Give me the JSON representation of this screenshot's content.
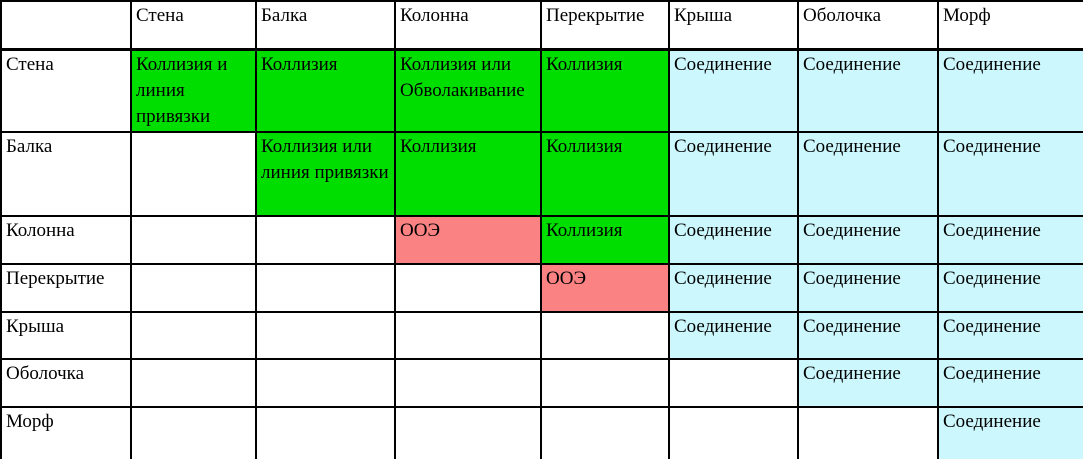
{
  "palette": {
    "green": "#00DE00",
    "red": "#FA8282",
    "cyan": "#CCF7FC",
    "white": "#FFFFFF",
    "border": "#000000",
    "text": "#000000"
  },
  "table": {
    "columns": [
      "",
      "Стена",
      "Балка",
      "Колонна",
      "Перекрытие",
      "Крыша",
      "Оболочка",
      "Морф"
    ],
    "rows": [
      {
        "label": "Стена",
        "cells": [
          {
            "text": "Коллизия и линия привязки",
            "bg": "green"
          },
          {
            "text": "Коллизия",
            "bg": "green"
          },
          {
            "text": "Коллизия или Обволакивание",
            "bg": "green"
          },
          {
            "text": "Коллизия",
            "bg": "green"
          },
          {
            "text": "Соединение",
            "bg": "cyan"
          },
          {
            "text": "Соединение",
            "bg": "cyan"
          },
          {
            "text": "Соединение",
            "bg": "cyan"
          }
        ]
      },
      {
        "label": "Балка",
        "cells": [
          {
            "text": "",
            "bg": "white"
          },
          {
            "text": "Коллизия или линия привязки",
            "bg": "green"
          },
          {
            "text": "Коллизия",
            "bg": "green"
          },
          {
            "text": "Коллизия",
            "bg": "green"
          },
          {
            "text": "Соединение",
            "bg": "cyan"
          },
          {
            "text": "Соединение",
            "bg": "cyan"
          },
          {
            "text": "Соединение",
            "bg": "cyan"
          }
        ]
      },
      {
        "label": "Колонна",
        "cells": [
          {
            "text": "",
            "bg": "white"
          },
          {
            "text": "",
            "bg": "white"
          },
          {
            "text": "ООЭ",
            "bg": "red"
          },
          {
            "text": "Коллизия",
            "bg": "green"
          },
          {
            "text": "Соединение",
            "bg": "cyan"
          },
          {
            "text": "Соединение",
            "bg": "cyan"
          },
          {
            "text": "Соединение",
            "bg": "cyan"
          }
        ]
      },
      {
        "label": "Перекрытие",
        "cells": [
          {
            "text": "",
            "bg": "white"
          },
          {
            "text": "",
            "bg": "white"
          },
          {
            "text": "",
            "bg": "white"
          },
          {
            "text": "ООЭ",
            "bg": "red"
          },
          {
            "text": "Соединение",
            "bg": "cyan"
          },
          {
            "text": "Соединение",
            "bg": "cyan"
          },
          {
            "text": "Соединение",
            "bg": "cyan"
          }
        ]
      },
      {
        "label": "Крыша",
        "cells": [
          {
            "text": "",
            "bg": "white"
          },
          {
            "text": "",
            "bg": "white"
          },
          {
            "text": "",
            "bg": "white"
          },
          {
            "text": "",
            "bg": "white"
          },
          {
            "text": "Соединение",
            "bg": "cyan"
          },
          {
            "text": "Соединение",
            "bg": "cyan"
          },
          {
            "text": "Соединение",
            "bg": "cyan"
          }
        ]
      },
      {
        "label": "Оболочка",
        "cells": [
          {
            "text": "",
            "bg": "white"
          },
          {
            "text": "",
            "bg": "white"
          },
          {
            "text": "",
            "bg": "white"
          },
          {
            "text": "",
            "bg": "white"
          },
          {
            "text": "",
            "bg": "white"
          },
          {
            "text": "Соединение",
            "bg": "cyan"
          },
          {
            "text": "Соединение",
            "bg": "cyan"
          }
        ]
      },
      {
        "label": "Морф",
        "cells": [
          {
            "text": "",
            "bg": "white"
          },
          {
            "text": "",
            "bg": "white"
          },
          {
            "text": "",
            "bg": "white"
          },
          {
            "text": "",
            "bg": "white"
          },
          {
            "text": "",
            "bg": "white"
          },
          {
            "text": "",
            "bg": "white"
          },
          {
            "text": "Соединение",
            "bg": "cyan"
          }
        ]
      }
    ]
  }
}
